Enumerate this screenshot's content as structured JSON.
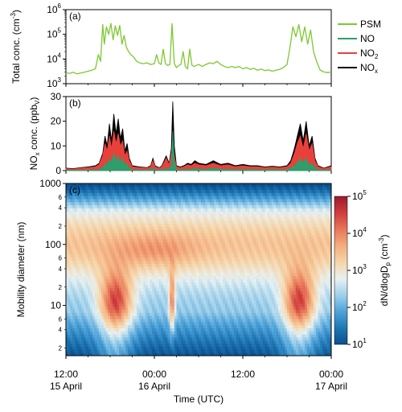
{
  "colors": {
    "psm": "#7dc832",
    "no": "#2e9e6b",
    "no2": "#e8413c",
    "nox": "#000000"
  },
  "x_axis": {
    "label": "Time (UTC)",
    "ticks": [
      {
        "h": 0,
        "time": "12:00",
        "date": "15 April"
      },
      {
        "h": 12,
        "time": "00:00",
        "date": "16 April"
      },
      {
        "h": 24,
        "time": "12:00",
        "date": ""
      },
      {
        "h": 36,
        "time": "00:00",
        "date": "17 April"
      }
    ]
  },
  "chart_data": [
    {
      "type": "line",
      "panel_label": "(a)",
      "ylabel": "Total conc. (cm",
      "ylabel_sup": "-3",
      "ylabel_end": ")",
      "yscale": "log",
      "ylim": [
        1000,
        1000000
      ],
      "yticks": [
        {
          "v": 1000,
          "base": "10",
          "exp": "3"
        },
        {
          "v": 10000,
          "base": "10",
          "exp": "4"
        },
        {
          "v": 100000,
          "base": "10",
          "exp": "5"
        },
        {
          "v": 1000000,
          "base": "10",
          "exp": "6"
        }
      ],
      "xlim_hours": [
        0,
        36
      ],
      "series": [
        {
          "name": "PSM",
          "x": [
            0,
            0.5,
            1,
            1.5,
            2,
            2.5,
            3,
            3.5,
            4,
            4.4,
            4.7,
            5.0,
            5.2,
            5.5,
            5.8,
            6.1,
            6.4,
            6.7,
            7.0,
            7.3,
            7.6,
            7.9,
            8.2,
            8.5,
            8.8,
            9.2,
            9.6,
            10,
            10.5,
            11,
            11.5,
            12,
            12.3,
            12.6,
            12.9,
            13.2,
            13.5,
            13.8,
            14.1,
            14.4,
            14.7,
            15.0,
            15.3,
            15.6,
            15.9,
            16.2,
            16.5,
            16.8,
            17.1,
            17.4,
            17.7,
            18,
            18.5,
            19,
            19.5,
            20,
            20.5,
            21,
            21.5,
            22,
            22.5,
            23,
            23.5,
            24,
            24.5,
            25,
            25.5,
            26,
            26.5,
            27,
            27.5,
            28,
            28.5,
            29,
            29.5,
            30,
            30.4,
            30.8,
            31.2,
            31.6,
            32.0,
            32.4,
            32.8,
            33.2,
            33.6,
            34.0,
            34.5,
            35,
            35.5,
            36
          ],
          "y": [
            2800,
            2600,
            2900,
            2500,
            2700,
            2900,
            3200,
            3500,
            4000,
            15000,
            8000,
            250000,
            40000,
            200000,
            100000,
            280000,
            60000,
            220000,
            90000,
            230000,
            40000,
            90000,
            30000,
            20000,
            15000,
            12000,
            8000,
            7000,
            6500,
            7000,
            6000,
            6500,
            15000,
            7000,
            6000,
            25000,
            6500,
            5500,
            6000,
            270000,
            6500,
            4500,
            5500,
            6000,
            20000,
            5000,
            4000,
            25000,
            5500,
            5000,
            5500,
            6000,
            5000,
            6000,
            7000,
            6500,
            8000,
            6000,
            5000,
            4500,
            5000,
            4500,
            5000,
            4000,
            4500,
            3800,
            4200,
            3500,
            3900,
            3400,
            3600,
            3200,
            3500,
            3800,
            4500,
            6000,
            30000,
            200000,
            80000,
            250000,
            50000,
            200000,
            40000,
            150000,
            20000,
            8000,
            3500,
            3000,
            2800,
            3000
          ]
        },
        {
          "name": "NO",
          "x": [],
          "y": []
        },
        {
          "name": "NO2",
          "x": [],
          "y": []
        },
        {
          "name": "NOx",
          "x": [],
          "y": []
        }
      ]
    },
    {
      "type": "area",
      "panel_label": "(b)",
      "ylabel": "NO",
      "ylabel_sub": "x",
      "ylabel_end": " conc. (ppb",
      "ylabel_sub2": "V",
      "ylabel_end2": ")",
      "ylim": [
        0,
        30
      ],
      "yticks": [
        0,
        10,
        20,
        30
      ],
      "xlim_hours": [
        0,
        36
      ],
      "series": [
        {
          "name": "NOx",
          "x": [
            0,
            1,
            2,
            3,
            4,
            4.5,
            5,
            5.3,
            5.6,
            5.9,
            6.2,
            6.5,
            6.8,
            7.1,
            7.4,
            7.7,
            8.0,
            8.3,
            8.6,
            9,
            10,
            11,
            11.5,
            11.8,
            12.1,
            12.4,
            12.7,
            13,
            13.6,
            14.0,
            14.3,
            14.5,
            14.7,
            15.0,
            15.5,
            16,
            16.5,
            17,
            17.5,
            18,
            19,
            20,
            21,
            22,
            23,
            24,
            25,
            26,
            27,
            28,
            29,
            30,
            30.5,
            31,
            31.4,
            31.8,
            32.2,
            32.6,
            33.0,
            33.4,
            33.8,
            34.2,
            35,
            36
          ],
          "y": [
            1,
            0.8,
            1.2,
            1.5,
            2,
            3,
            7,
            14,
            10,
            19,
            12,
            23,
            15,
            21,
            13,
            17,
            8,
            11,
            5,
            2,
            1.5,
            1.2,
            2,
            5,
            2,
            1.5,
            1.2,
            2,
            6,
            3,
            9,
            28,
            10,
            2,
            1.5,
            2,
            3,
            2.5,
            4,
            3,
            2.5,
            4,
            2.5,
            3,
            2,
            2.5,
            2,
            2,
            1.5,
            1.8,
            1.5,
            2,
            4,
            9,
            14,
            19,
            12,
            20,
            10,
            14,
            5,
            2,
            1,
            2
          ]
        },
        {
          "name": "NO2",
          "x": [
            0,
            1,
            2,
            3,
            4,
            4.5,
            5,
            5.3,
            5.6,
            5.9,
            6.2,
            6.5,
            6.8,
            7.1,
            7.4,
            7.7,
            8.0,
            8.3,
            8.6,
            9,
            10,
            11,
            11.5,
            11.8,
            12.1,
            12.4,
            12.7,
            13,
            13.6,
            14.0,
            14.3,
            14.5,
            14.7,
            15.0,
            15.5,
            16,
            16.5,
            17,
            17.5,
            18,
            19,
            20,
            21,
            22,
            23,
            24,
            25,
            26,
            27,
            28,
            29,
            30,
            30.5,
            31,
            31.4,
            31.8,
            32.2,
            32.6,
            33.0,
            33.4,
            33.8,
            34.2,
            35,
            36
          ],
          "y": [
            0.8,
            0.6,
            1,
            1.2,
            1.6,
            2.5,
            6,
            11,
            8,
            14,
            9,
            16,
            11,
            15,
            10,
            12,
            6,
            8,
            4,
            1.6,
            1.2,
            1,
            1.6,
            4,
            1.6,
            1.2,
            1,
            1.6,
            5,
            2.5,
            7,
            12,
            6,
            1.6,
            1.2,
            1.6,
            2.4,
            2,
            3,
            2.4,
            2,
            3,
            2,
            2.4,
            1.6,
            2,
            1.6,
            1.6,
            1.2,
            1.4,
            1.2,
            1.6,
            3,
            7,
            11,
            14,
            9,
            15,
            8,
            11,
            4,
            1.6,
            0.8,
            1.6
          ]
        },
        {
          "name": "NO",
          "x": [
            0,
            1,
            2,
            3,
            4,
            4.5,
            5,
            5.3,
            5.6,
            5.9,
            6.2,
            6.5,
            6.8,
            7.1,
            7.4,
            7.7,
            8.0,
            8.3,
            8.6,
            9,
            10,
            11,
            11.5,
            11.8,
            12.1,
            12.4,
            12.7,
            13,
            13.6,
            14.0,
            14.3,
            14.5,
            14.7,
            15.0,
            15.5,
            16,
            16.5,
            17,
            17.5,
            18,
            19,
            20,
            21,
            22,
            23,
            24,
            25,
            26,
            27,
            28,
            29,
            30,
            30.5,
            31,
            31.4,
            31.8,
            32.2,
            32.6,
            33.0,
            33.4,
            33.8,
            34.2,
            35,
            36
          ],
          "y": [
            0.2,
            0.2,
            0.2,
            0.3,
            0.4,
            0.5,
            1,
            3,
            2,
            5,
            3,
            7,
            4,
            6,
            3,
            5,
            2,
            3,
            1,
            0.4,
            0.3,
            0.2,
            0.4,
            1,
            0.4,
            0.3,
            0.2,
            0.4,
            1,
            0.5,
            2,
            16,
            4,
            0.4,
            0.3,
            0.4,
            0.6,
            0.5,
            1,
            0.6,
            0.5,
            1,
            0.5,
            0.6,
            0.4,
            0.5,
            0.4,
            0.4,
            0.3,
            0.4,
            0.3,
            0.4,
            1,
            2,
            3,
            5,
            3,
            5,
            2,
            3,
            1,
            0.4,
            0.2,
            0.4
          ]
        }
      ]
    },
    {
      "type": "heatmap",
      "panel_label": "(c)",
      "ylabel": "Mobility diameter (nm)",
      "yscale": "log",
      "ylim": [
        1.5,
        1000
      ],
      "ymajor": [
        {
          "v": 10,
          "label": "10"
        },
        {
          "v": 100,
          "label": "100"
        },
        {
          "v": 1000,
          "label": "1000"
        }
      ],
      "yminor": [
        {
          "v": 2,
          "label": "2"
        },
        {
          "v": 4,
          "label": "4"
        },
        {
          "v": 6,
          "label": "6"
        },
        {
          "v": 20,
          "label": "2"
        },
        {
          "v": 40,
          "label": "4"
        },
        {
          "v": 60,
          "label": "6"
        },
        {
          "v": 200,
          "label": "2"
        },
        {
          "v": 400,
          "label": "4"
        },
        {
          "v": 600,
          "label": "6"
        }
      ],
      "xlim_hours": [
        0,
        36
      ],
      "colorbar": {
        "label_main": "dN/dlogD",
        "label_sub": "p",
        "label_unit": " (cm",
        "label_sup": "-3",
        "label_end": ")",
        "scale": "log",
        "range": [
          10,
          100000
        ],
        "ticks": [
          {
            "v": 10,
            "base": "10",
            "exp": "1"
          },
          {
            "v": 100,
            "base": "10",
            "exp": "2"
          },
          {
            "v": 1000,
            "base": "10",
            "exp": "3"
          },
          {
            "v": 10000,
            "base": "10",
            "exp": "4"
          },
          {
            "v": 100000,
            "base": "10",
            "exp": "5"
          }
        ],
        "stops": [
          "#0b4f8f",
          "#1f77b4",
          "#4fa3d9",
          "#9fd0ea",
          "#e8f1f2",
          "#f6d5a8",
          "#f3ad7e",
          "#e8775a",
          "#cf3b3b",
          "#9b1b30"
        ]
      },
      "events": [
        {
          "start_h": 4.5,
          "end_h": 9.0,
          "peak": 100000
        },
        {
          "start_h": 14.0,
          "end_h": 14.8,
          "peak": 30000
        },
        {
          "start_h": 29.5,
          "end_h": 33.8,
          "peak": 100000
        }
      ]
    }
  ]
}
